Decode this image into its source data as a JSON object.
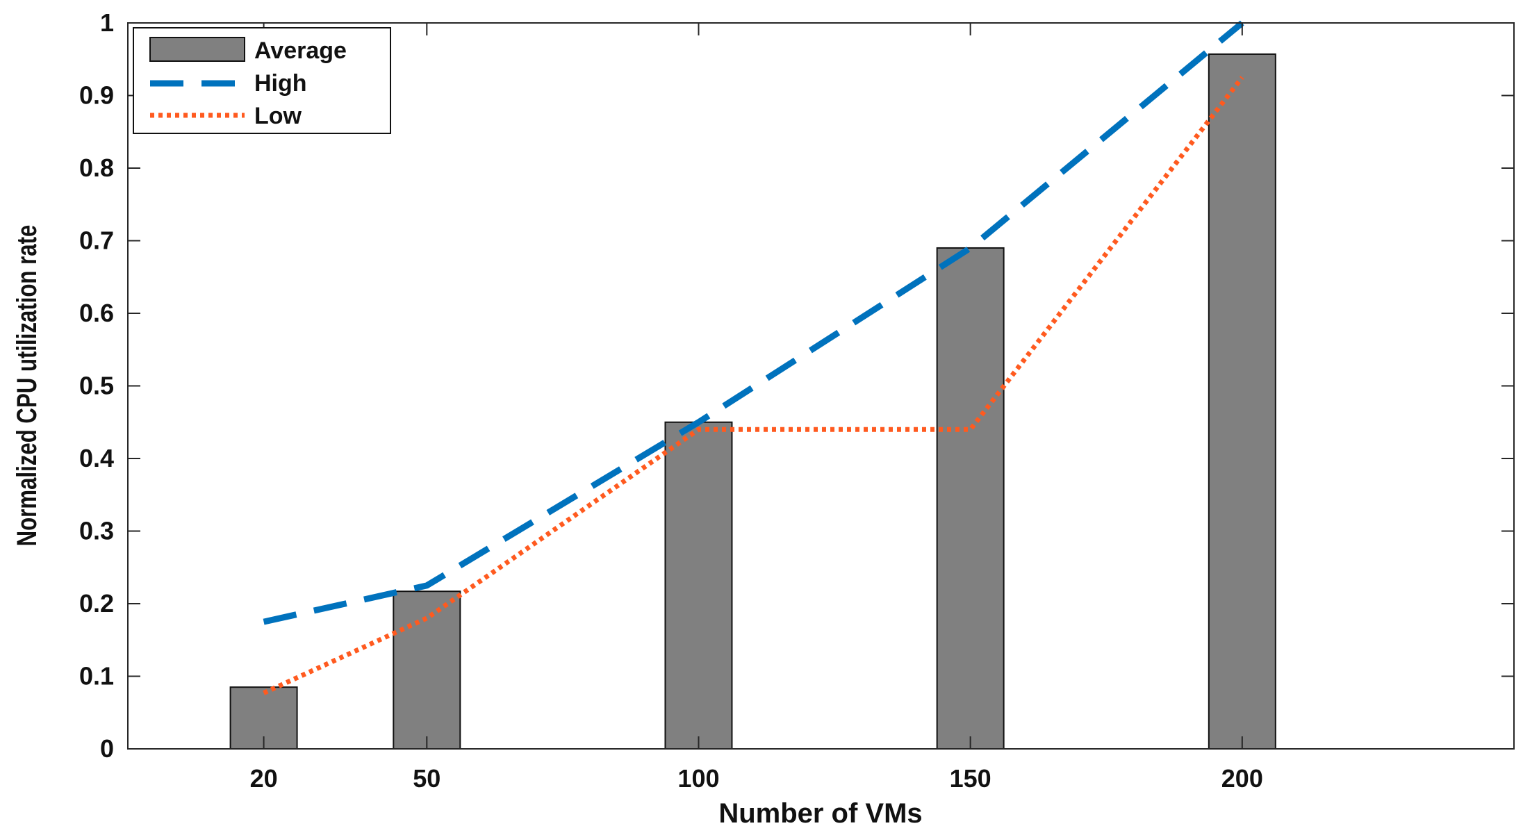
{
  "chart_data": {
    "type": "bar",
    "title": "",
    "xlabel": "Number of VMs",
    "ylabel": "Normalized CPU utilization rate",
    "x": [
      20,
      50,
      100,
      150,
      200
    ],
    "xlim": [
      -5,
      250
    ],
    "ylim": [
      0,
      1
    ],
    "yticks": [
      0,
      0.1,
      0.2,
      0.3,
      0.4,
      0.5,
      0.6,
      0.7,
      0.8,
      0.9,
      1
    ],
    "ytick_labels": [
      "0",
      "0.1",
      "0.2",
      "0.3",
      "0.4",
      "0.5",
      "0.6",
      "0.7",
      "0.8",
      "0.9",
      "1"
    ],
    "xtick_labels": [
      "20",
      "50",
      "100",
      "150",
      "200"
    ],
    "grid": false,
    "legend_position": "top-left",
    "series": [
      {
        "name": "Average",
        "kind": "bar",
        "color": "#808080",
        "values": [
          0.085,
          0.217,
          0.45,
          0.69,
          0.957
        ]
      },
      {
        "name": "High",
        "kind": "line",
        "style": "dashed",
        "color": "#0072bd",
        "values": [
          0.175,
          0.225,
          0.45,
          0.69,
          1.0
        ]
      },
      {
        "name": "Low",
        "kind": "line",
        "style": "dotted",
        "color": "#ff5a1f",
        "values": [
          0.077,
          0.18,
          0.44,
          0.44,
          0.925
        ]
      }
    ]
  }
}
